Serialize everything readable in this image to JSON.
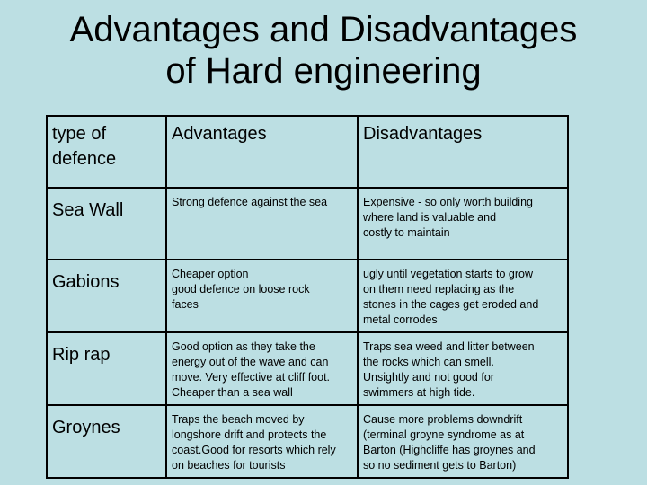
{
  "title": {
    "line1": "Advantages and Disadvantages",
    "line2": "of Hard engineering"
  },
  "table": {
    "headers": [
      "type of\ndefence",
      "Advantages",
      "Disadvantages"
    ],
    "rows": [
      {
        "type": "Sea Wall",
        "advantages": "Strong defence against the sea",
        "disadvantages": "Expensive - so only worth building\nwhere land is valuable and\ncostly to maintain"
      },
      {
        "type": "Gabions",
        "advantages": "Cheaper option\ngood defence on loose rock\nfaces",
        "disadvantages": "ugly until vegetation starts to grow\non them   need replacing as the\nstones in the cages get eroded and\nmetal corrodes"
      },
      {
        "type": "Rip rap",
        "advantages": "Good option as they take the\nenergy out of the wave and can\nmove.  Very effective at cliff foot.\nCheaper than a sea wall",
        "disadvantages": "Traps sea weed and litter between\nthe rocks which can smell.\nUnsightly and not good for\nswimmers at high tide."
      },
      {
        "type": "Groynes",
        "advantages": "Traps the beach moved by\nlongshore drift and protects the\ncoast.Good for resorts which rely\non beaches for tourists",
        "disadvantages": "Cause more problems downdrift\n(terminal groyne syndrome as at\nBarton (Highcliffe has groynes and\nso no sediment gets to Barton)"
      }
    ]
  }
}
